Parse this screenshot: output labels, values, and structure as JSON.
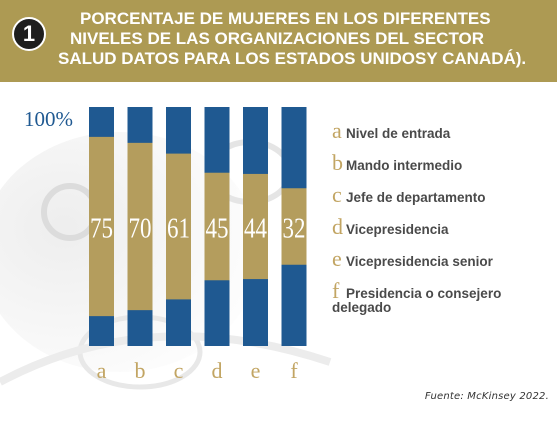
{
  "header": {
    "badge": "1",
    "title_lines": [
      "PORCENTAJE DE MUJERES EN LOS DIFERENTES",
      "NIVELES DE LAS ORGANIZACIONES DEL SECTOR",
      "SALUD DATOS PARA LOS ESTADOS UNIDOSY CANADÁ)."
    ]
  },
  "chart_data": {
    "type": "bar",
    "title": "PORCENTAJE DE MUJERES EN LOS DIFERENTES NIVELES DE LAS ORGANIZACIONES DEL SECTOR SALUD DATOS PARA LOS ESTADOS UNIDOSY CANADÁ).",
    "y_axis_label": "100%",
    "ylim": [
      0,
      100
    ],
    "categories": [
      "a",
      "b",
      "c",
      "d",
      "e",
      "f"
    ],
    "values": [
      75,
      70,
      61,
      45,
      44,
      32
    ],
    "value_labels": [
      "75",
      "70",
      "61",
      "45",
      "44",
      "32"
    ],
    "legend": [
      {
        "letter": "a",
        "label": "Nivel de entrada"
      },
      {
        "letter": "b",
        "label": "Mando intermedio"
      },
      {
        "letter": "c",
        "label": "Jefe de departamento"
      },
      {
        "letter": "d",
        "label": "Vicepresidencia"
      },
      {
        "letter": "e",
        "label": "Vicepresidencia senior"
      },
      {
        "letter": "f",
        "label": "Presidencia o consejero",
        "label_line2": "delegado"
      }
    ],
    "legend_placement": "right",
    "grid": false,
    "colors": {
      "bar_total": "#1f5991",
      "bar_value": "#b49d5d",
      "value_text": "#ffffff",
      "category_text": "#c2a563",
      "axis_text": "#1f5991"
    }
  },
  "source": "Fuente: McKinsey 2022."
}
